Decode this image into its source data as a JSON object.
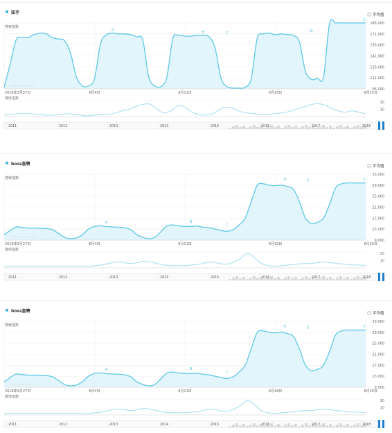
{
  "common": {
    "avg_label": "平均值",
    "search_index_label": "搜索指数",
    "media_index_label": "媒体指数",
    "watermark": "index.baidu.com",
    "colors": {
      "line": "#5bc8e6",
      "fill": "#e3f5fc",
      "grid": "#eeeeee",
      "text": "#666666",
      "legend": "#4fb8e0",
      "brush": "#1e7fd0",
      "slider": "#d9d9d9"
    }
  },
  "chart_data": [
    {
      "type": "area",
      "title": "知乎",
      "x_ticks": [
        "2018年5月27日",
        "6月4日",
        "6月11日",
        "6月18日",
        "6月25日"
      ],
      "y_ticks": [
        96000,
        111000,
        126000,
        141000,
        156000,
        171000,
        186000
      ],
      "y_tick_labels": [
        "96,000",
        "111,000",
        "126,000",
        "141,000",
        "156,000",
        "171,000",
        "186,000"
      ],
      "ylim": [
        96000,
        186000
      ],
      "series": [
        {
          "x": [
            0,
            0.5,
            1,
            1.5,
            2,
            2.5,
            3,
            3.5,
            4,
            4.5,
            5,
            5.5,
            6,
            6.5,
            7,
            7.5,
            8,
            8.5,
            9,
            9.5,
            10,
            10.5,
            11,
            11.5,
            12,
            12.5,
            13,
            13.5,
            14,
            14.5,
            15,
            15.5,
            16,
            16.5,
            17,
            17.5,
            18,
            18.5,
            19,
            19.5,
            20,
            20.5,
            21,
            21.5,
            22,
            22.5,
            23,
            23.5,
            24,
            24.5,
            25,
            25.5,
            26,
            26.5,
            27,
            27.5,
            28,
            28.5,
            29,
            29.5,
            30
          ],
          "values": [
            98000,
            130000,
            163000,
            166000,
            166000,
            170000,
            172000,
            171000,
            166000,
            164000,
            162000,
            145000,
            112000,
            100000,
            100000,
            110000,
            158000,
            170000,
            172000,
            171000,
            171000,
            170000,
            167000,
            163000,
            112000,
            100000,
            99000,
            112000,
            165000,
            169000,
            168000,
            168000,
            169000,
            169000,
            167000,
            152000,
            110000,
            99000,
            97000,
            97000,
            98000,
            110000,
            165000,
            171000,
            172000,
            170000,
            171000,
            170000,
            169000,
            160000,
            120000,
            109000,
            110000,
            112000,
            185000,
            186000,
            186000,
            186000,
            186000,
            186000,
            186000
          ]
        }
      ],
      "markers": [
        {
          "label": "A",
          "x": 9,
          "value": 172000
        },
        {
          "label": "B",
          "x": 16.5,
          "value": 169000
        },
        {
          "label": "C",
          "x": 18.5,
          "value": 168000
        },
        {
          "label": "D",
          "x": 25.5,
          "value": 171000
        },
        {
          "label": "E",
          "x": 29.9,
          "value": 186000
        }
      ],
      "media_ticks": [
        10,
        20
      ],
      "media": [
        2,
        3,
        4,
        4,
        4,
        3,
        2,
        2,
        3,
        4,
        3,
        2,
        1,
        2,
        3,
        3,
        5,
        8,
        10,
        14,
        17,
        17,
        10,
        5,
        8,
        15,
        13,
        6,
        3,
        2,
        4,
        10,
        13,
        11,
        7,
        5,
        4,
        3,
        3,
        4,
        5,
        7,
        10,
        13,
        16,
        18,
        16,
        12,
        8,
        6,
        8,
        6,
        4
      ],
      "timeline_years": [
        "2011",
        "2012",
        "2013",
        "2014",
        "2015",
        "2016",
        "2017",
        "2018"
      ]
    },
    {
      "type": "area",
      "title": "boss直聘",
      "x_ticks": [
        "2018年5月27日",
        "6月4日",
        "6月11日",
        "6月18日",
        "6月25日"
      ],
      "y_ticks": [
        9000,
        13000,
        17000,
        21000,
        25000,
        29000,
        33000
      ],
      "y_tick_labels": [
        "9,000",
        "13,000",
        "17,000",
        "21,000",
        "25,000",
        "29,000",
        "33,000"
      ],
      "ylim": [
        9000,
        33000
      ],
      "series": [
        {
          "x": [
            0,
            0.5,
            1,
            1.5,
            2,
            2.5,
            3,
            3.5,
            4,
            4.5,
            5,
            5.5,
            6,
            6.5,
            7,
            7.5,
            8,
            8.5,
            9,
            9.5,
            10,
            10.5,
            11,
            11.5,
            12,
            12.5,
            13,
            13.5,
            14,
            14.5,
            15,
            15.5,
            16,
            16.5,
            17,
            17.5,
            18,
            18.5,
            19,
            19.5,
            20,
            20.5,
            21,
            21.5,
            22,
            22.5,
            23,
            23.5,
            24,
            24.5,
            25,
            25.5,
            26,
            26.5,
            27,
            27.5,
            28,
            28.5,
            29,
            29.5,
            30
          ],
          "values": [
            11000,
            12500,
            13800,
            13600,
            13400,
            13400,
            13300,
            13200,
            12800,
            11500,
            10000,
            9500,
            9800,
            11000,
            13000,
            14000,
            14200,
            13900,
            13800,
            13700,
            13500,
            12800,
            11000,
            10000,
            9500,
            10000,
            12000,
            14200,
            14500,
            14200,
            14000,
            14000,
            14100,
            13700,
            13500,
            13000,
            12500,
            12200,
            12800,
            14500,
            17000,
            23000,
            29000,
            29500,
            29000,
            28800,
            29000,
            28500,
            27500,
            23000,
            17000,
            15000,
            15500,
            17000,
            22000,
            28000,
            29500,
            29800,
            29800,
            29800,
            29800
          ]
        }
      ],
      "markers": [
        {
          "label": "A",
          "x": 8.5,
          "value": 14300
        },
        {
          "label": "B",
          "x": 15.5,
          "value": 14500
        },
        {
          "label": "C",
          "x": 18.5,
          "value": 13600
        },
        {
          "label": "D",
          "x": 23.3,
          "value": 30000
        },
        {
          "label": "E",
          "x": 25.2,
          "value": 29600
        },
        {
          "label": "F",
          "x": 29.9,
          "value": 29800
        }
      ],
      "media_ticks": [
        10,
        20
      ],
      "media": [
        2,
        2,
        2,
        2,
        2,
        2,
        2,
        2,
        2,
        2,
        2,
        2,
        2,
        3,
        4,
        6,
        8,
        8,
        6,
        7,
        9,
        8,
        6,
        4,
        3,
        3,
        3,
        4,
        5,
        7,
        8,
        6,
        5,
        8,
        13,
        20,
        14,
        6,
        3,
        2,
        3,
        4,
        5,
        6,
        6,
        7,
        8,
        7,
        6,
        5,
        4,
        4,
        3
      ],
      "timeline_years": [
        "2011",
        "2012",
        "2013",
        "2014",
        "2015",
        "2016",
        "2017",
        "2018"
      ]
    },
    {
      "type": "area",
      "title": "boss直聘",
      "x_ticks": [
        "2018年5月27日",
        "6月4日",
        "6月11日",
        "6月18日",
        "6月25日"
      ],
      "y_ticks": [
        9000,
        13000,
        17000,
        21000,
        25000,
        29000,
        33000
      ],
      "y_tick_labels": [
        "9,000",
        "13,000",
        "17,000",
        "21,000",
        "25,000",
        "29,000",
        "33,000"
      ],
      "ylim": [
        9000,
        33000
      ],
      "series": [
        {
          "x": [
            0,
            0.5,
            1,
            1.5,
            2,
            2.5,
            3,
            3.5,
            4,
            4.5,
            5,
            5.5,
            6,
            6.5,
            7,
            7.5,
            8,
            8.5,
            9,
            9.5,
            10,
            10.5,
            11,
            11.5,
            12,
            12.5,
            13,
            13.5,
            14,
            14.5,
            15,
            15.5,
            16,
            16.5,
            17,
            17.5,
            18,
            18.5,
            19,
            19.5,
            20,
            20.5,
            21,
            21.5,
            22,
            22.5,
            23,
            23.5,
            24,
            24.5,
            25,
            25.5,
            26,
            26.5,
            27,
            27.5,
            28,
            28.5,
            29,
            29.5,
            30
          ],
          "values": [
            11000,
            12500,
            13800,
            13600,
            13400,
            13400,
            13300,
            13200,
            12800,
            11500,
            10000,
            9500,
            9800,
            11000,
            13000,
            14000,
            14200,
            13900,
            13800,
            13700,
            13500,
            12800,
            11000,
            10000,
            9500,
            10000,
            12000,
            14200,
            14500,
            14200,
            14000,
            14000,
            14100,
            13700,
            13500,
            13000,
            12500,
            12200,
            12800,
            14500,
            17000,
            23000,
            29000,
            29500,
            29000,
            28800,
            29000,
            28500,
            27500,
            23000,
            17000,
            15000,
            15500,
            17000,
            22000,
            28000,
            29500,
            29800,
            29800,
            29800,
            29800
          ]
        }
      ],
      "markers": [
        {
          "label": "A",
          "x": 8.5,
          "value": 14300
        },
        {
          "label": "B",
          "x": 15.5,
          "value": 14500
        },
        {
          "label": "C",
          "x": 18.5,
          "value": 13600
        },
        {
          "label": "D",
          "x": 23.3,
          "value": 30000
        },
        {
          "label": "E",
          "x": 25.2,
          "value": 29600
        },
        {
          "label": "F",
          "x": 29.9,
          "value": 29800
        }
      ],
      "media_ticks": [
        10,
        20
      ],
      "media": [
        2,
        2,
        2,
        2,
        2,
        2,
        2,
        2,
        2,
        2,
        2,
        2,
        2,
        3,
        4,
        6,
        8,
        8,
        6,
        7,
        9,
        8,
        6,
        4,
        3,
        3,
        3,
        4,
        5,
        7,
        8,
        6,
        5,
        8,
        13,
        20,
        14,
        6,
        3,
        2,
        3,
        4,
        5,
        6,
        6,
        7,
        8,
        7,
        6,
        5,
        4,
        4,
        3
      ],
      "timeline_years": [
        "2011",
        "2012",
        "2013",
        "2014",
        "2015",
        "2016",
        "2017",
        "2018"
      ]
    }
  ]
}
